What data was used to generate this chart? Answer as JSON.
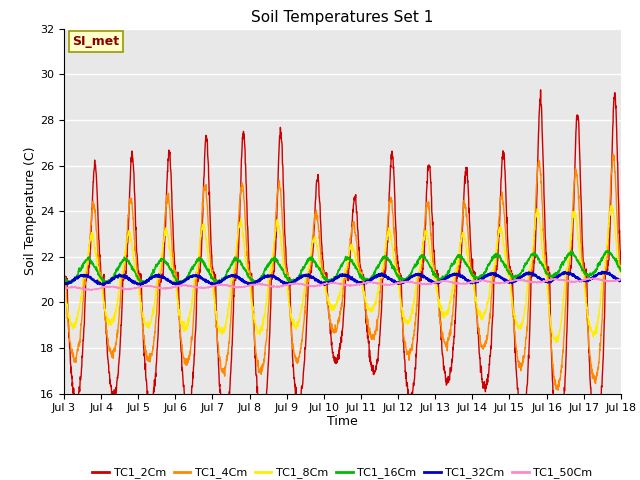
{
  "title": "Soil Temperatures Set 1",
  "xlabel": "Time",
  "ylabel": "Soil Temperature (C)",
  "ylim": [
    16,
    32
  ],
  "yticks": [
    16,
    18,
    20,
    22,
    24,
    26,
    28,
    30,
    32
  ],
  "annotation_text": "SI_met",
  "series": {
    "TC1_2Cm": {
      "color": "#cc0000",
      "lw": 1.0
    },
    "TC1_4Cm": {
      "color": "#ff8800",
      "lw": 1.0
    },
    "TC1_8Cm": {
      "color": "#ffee00",
      "lw": 1.0
    },
    "TC1_16Cm": {
      "color": "#00bb00",
      "lw": 1.2
    },
    "TC1_32Cm": {
      "color": "#0000cc",
      "lw": 1.5
    },
    "TC1_50Cm": {
      "color": "#ff88cc",
      "lw": 1.0
    }
  },
  "bg_color": "#e8e8e8",
  "fig_bg": "#ffffff",
  "xtick_labels": [
    "Jul 3",
    "Jul 4",
    "Jul 5",
    "Jul 6",
    "Jul 7",
    "Jul 8",
    "Jul 9",
    "Jul 10",
    "Jul 11",
    "Jul 12",
    "Jul 13",
    "Jul 14",
    "Jul 15",
    "Jul 16",
    "Jul 17",
    "Jul 18"
  ],
  "num_days": 15,
  "pts_per_day": 144
}
